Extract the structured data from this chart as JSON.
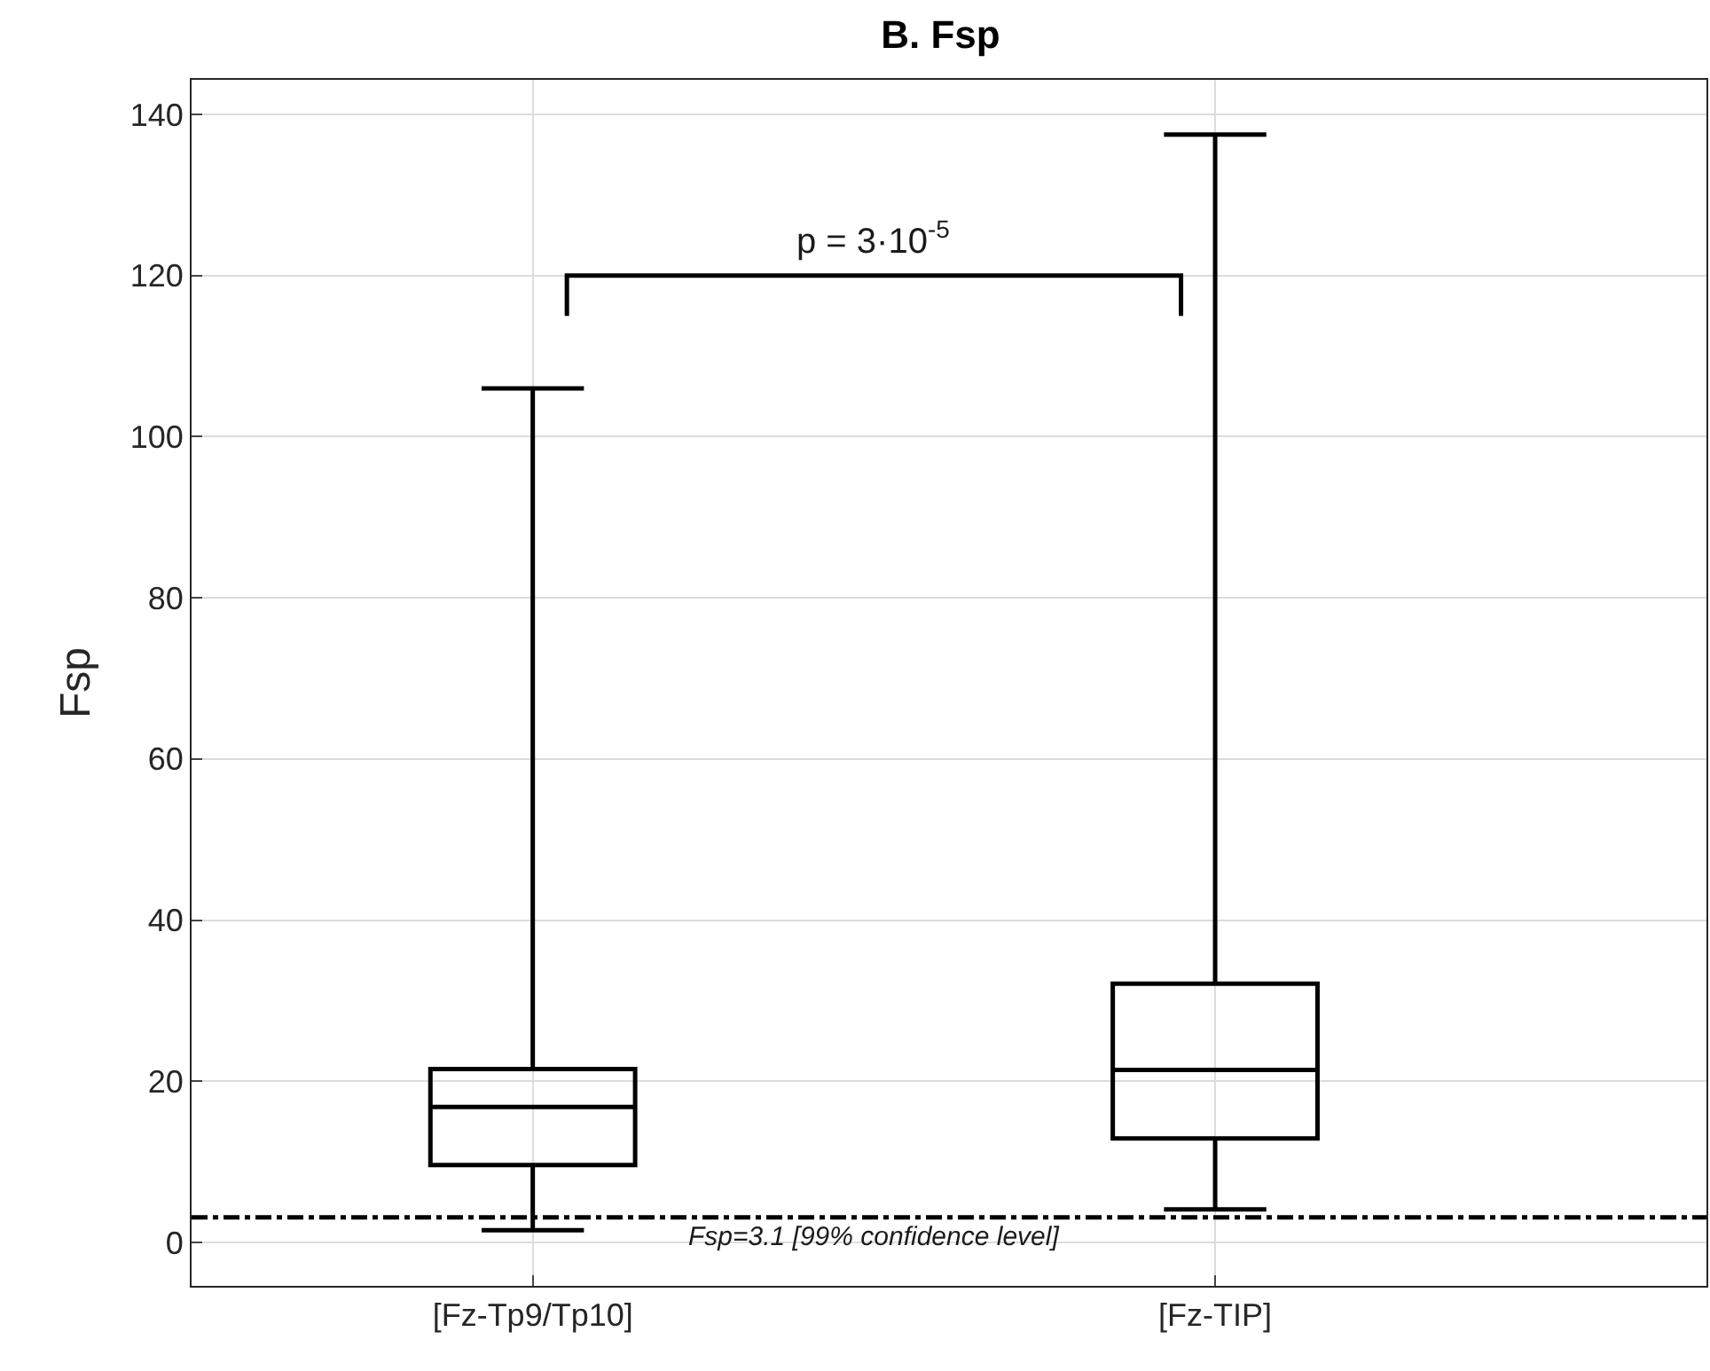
{
  "chart_data": {
    "type": "box",
    "title": "B. Fsp",
    "ylabel": "Fsp",
    "categories": [
      "[Fz-Tp9/Tp10]",
      "[Fz-TIP]"
    ],
    "boxes": [
      {
        "low": 1.5,
        "q1": 9.6,
        "median": 16.8,
        "q3": 21.5,
        "high": 106
      },
      {
        "low": 4.1,
        "q1": 12.9,
        "median": 21.4,
        "q3": 32.1,
        "high": 137.5
      }
    ],
    "color": "#000000",
    "ylim": [
      -5.4,
      144.3
    ],
    "yticks": [
      0,
      20,
      40,
      60,
      80,
      100,
      120,
      140
    ],
    "grid": true,
    "ref_lines": [
      {
        "axis": "y",
        "value": 3.1,
        "label": "Fsp=3.1 [99% confidence level]",
        "color": "#000000",
        "line_style": "dashdot"
      }
    ],
    "annotations": [
      "p = 3·10$^{-5}$"
    ]
  }
}
